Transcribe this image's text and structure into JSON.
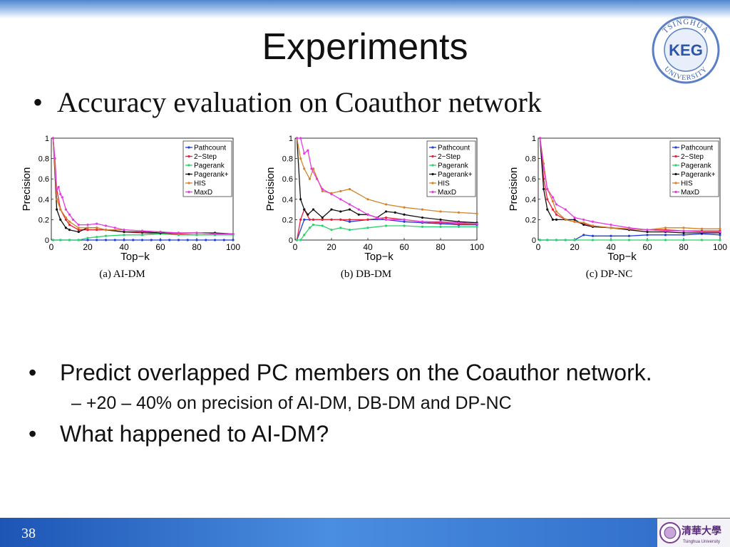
{
  "slide": {
    "title": "Experiments",
    "bullet_top": "Accuracy evaluation on Coauthor network",
    "bullet_predict": "Predict overlapped PC members on the Coauthor network.",
    "sub_bullet": "+20 – 40% on precision of AI-DM, DB-DM and DP-NC",
    "bullet_question": "What happened to AI-DM?",
    "slide_number": "38",
    "bullet_glyph": "•",
    "dash_glyph": "–"
  },
  "logo": {
    "ring_text_top": "TSINGHUA",
    "ring_text_bottom": "UNIVERSITY",
    "center_text": "KEG",
    "footer_chinese": "清華大學",
    "footer_english": "Tsinghua University"
  },
  "colors": {
    "Pathcount": "#1f3fd6",
    "2-Step": "#e8213a",
    "Pagerank": "#27d36b",
    "Pagerank+": "#111111",
    "HIS": "#d4842a",
    "MaxD": "#e43ce0",
    "title_band": "#4f86cf",
    "footer": "#1d55b5"
  },
  "chart_data": [
    {
      "type": "line",
      "caption": "(a) AI-DM",
      "xlabel": "Top−k",
      "ylabel": "Precision",
      "xlim": [
        0,
        100
      ],
      "ylim": [
        0,
        1
      ],
      "xticks": [
        "0",
        "20",
        "40",
        "60",
        "80",
        "100"
      ],
      "yticks": [
        "0",
        "0.2",
        "0.4",
        "0.6",
        "0.8",
        "1"
      ],
      "legend_position": "top-right",
      "series": [
        {
          "name": "Pathcount",
          "x": [
            1,
            5,
            10,
            15,
            20,
            25,
            30,
            35,
            40,
            45,
            50,
            55,
            60,
            65,
            70,
            75,
            80,
            85,
            90,
            95,
            100
          ],
          "y": [
            0,
            0,
            0,
            0,
            0,
            0,
            0,
            0,
            0,
            0,
            0,
            0,
            0,
            0,
            0,
            0,
            0,
            0,
            0,
            0,
            0
          ]
        },
        {
          "name": "2−Step",
          "x": [
            1,
            3,
            5,
            8,
            10,
            15,
            20,
            25,
            30,
            40,
            50,
            60,
            70,
            80,
            90,
            100
          ],
          "y": [
            1.0,
            0.5,
            0.3,
            0.2,
            0.15,
            0.1,
            0.1,
            0.1,
            0.1,
            0.08,
            0.07,
            0.06,
            0.06,
            0.05,
            0.05,
            0.05
          ]
        },
        {
          "name": "Pagerank",
          "x": [
            1,
            5,
            10,
            15,
            20,
            25,
            30,
            40,
            50,
            60,
            70,
            80,
            90,
            100
          ],
          "y": [
            0,
            0,
            0,
            0,
            0.02,
            0.03,
            0.04,
            0.05,
            0.05,
            0.06,
            0.05,
            0.05,
            0.05,
            0.05
          ]
        },
        {
          "name": "Pagerank+",
          "x": [
            1,
            3,
            5,
            8,
            10,
            15,
            20,
            25,
            30,
            40,
            50,
            60,
            70,
            80,
            90,
            100
          ],
          "y": [
            1.0,
            0.3,
            0.2,
            0.12,
            0.1,
            0.08,
            0.12,
            0.12,
            0.1,
            0.08,
            0.08,
            0.07,
            0.07,
            0.07,
            0.07,
            0.06
          ]
        },
        {
          "name": "HIS",
          "x": [
            1,
            3,
            5,
            8,
            10,
            15,
            20,
            25,
            30,
            40,
            50,
            60,
            70,
            80,
            90,
            100
          ],
          "y": [
            1.0,
            0.4,
            0.3,
            0.22,
            0.18,
            0.12,
            0.12,
            0.12,
            0.1,
            0.1,
            0.09,
            0.08,
            0.07,
            0.07,
            0.06,
            0.06
          ]
        },
        {
          "name": "MaxD",
          "x": [
            1,
            2,
            3,
            4,
            5,
            6,
            8,
            10,
            12,
            15,
            20,
            25,
            30,
            35,
            40,
            50,
            60,
            70,
            80,
            90,
            100
          ],
          "y": [
            1.0,
            0.8,
            0.5,
            0.52,
            0.45,
            0.42,
            0.3,
            0.25,
            0.2,
            0.15,
            0.15,
            0.16,
            0.14,
            0.12,
            0.1,
            0.09,
            0.08,
            0.07,
            0.07,
            0.06,
            0.06
          ]
        }
      ]
    },
    {
      "type": "line",
      "caption": "(b) DB-DM",
      "xlabel": "Top−k",
      "ylabel": "Precision",
      "xlim": [
        0,
        100
      ],
      "ylim": [
        0,
        1
      ],
      "xticks": [
        "0",
        "20",
        "40",
        "60",
        "80",
        "100"
      ],
      "yticks": [
        "0",
        "0.2",
        "0.4",
        "0.6",
        "0.8",
        "1"
      ],
      "legend_position": "top-right",
      "series": [
        {
          "name": "Pathcount",
          "x": [
            1,
            5,
            10,
            15,
            20,
            25,
            30,
            40,
            50,
            60,
            70,
            80,
            90,
            100
          ],
          "y": [
            0,
            0.2,
            0.2,
            0.2,
            0.2,
            0.2,
            0.18,
            0.2,
            0.2,
            0.18,
            0.17,
            0.16,
            0.15,
            0.15
          ]
        },
        {
          "name": "2−Step",
          "x": [
            1,
            3,
            5,
            8,
            10,
            15,
            20,
            25,
            30,
            40,
            50,
            60,
            70,
            80,
            90,
            100
          ],
          "y": [
            0,
            0.2,
            0.3,
            0.2,
            0.2,
            0.2,
            0.2,
            0.2,
            0.2,
            0.2,
            0.22,
            0.2,
            0.18,
            0.17,
            0.16,
            0.16
          ]
        },
        {
          "name": "Pagerank",
          "x": [
            1,
            3,
            5,
            8,
            10,
            15,
            20,
            25,
            30,
            40,
            50,
            60,
            70,
            80,
            90,
            100
          ],
          "y": [
            0,
            0,
            0.05,
            0.12,
            0.15,
            0.14,
            0.1,
            0.12,
            0.1,
            0.12,
            0.14,
            0.14,
            0.13,
            0.13,
            0.13,
            0.13
          ]
        },
        {
          "name": "Pagerank+",
          "x": [
            1,
            3,
            5,
            7,
            10,
            15,
            20,
            25,
            30,
            35,
            40,
            45,
            50,
            55,
            60,
            70,
            80,
            90,
            100
          ],
          "y": [
            1.0,
            0.4,
            0.3,
            0.25,
            0.3,
            0.22,
            0.3,
            0.28,
            0.3,
            0.25,
            0.25,
            0.22,
            0.28,
            0.27,
            0.25,
            0.22,
            0.2,
            0.18,
            0.17
          ]
        },
        {
          "name": "HIS",
          "x": [
            1,
            3,
            5,
            8,
            10,
            15,
            20,
            25,
            30,
            40,
            50,
            60,
            70,
            80,
            90,
            100
          ],
          "y": [
            1.0,
            0.8,
            0.7,
            0.6,
            0.7,
            0.48,
            0.46,
            0.48,
            0.5,
            0.4,
            0.35,
            0.32,
            0.3,
            0.28,
            0.27,
            0.26
          ]
        },
        {
          "name": "MaxD",
          "x": [
            1,
            3,
            5,
            7,
            9,
            12,
            15,
            20,
            25,
            30,
            35,
            40,
            45,
            50,
            60,
            70,
            80,
            90,
            100
          ],
          "y": [
            1.0,
            1.0,
            0.85,
            0.88,
            0.7,
            0.6,
            0.5,
            0.45,
            0.4,
            0.35,
            0.3,
            0.25,
            0.22,
            0.2,
            0.2,
            0.18,
            0.18,
            0.17,
            0.16
          ]
        }
      ]
    },
    {
      "type": "line",
      "caption": "(c) DP-NC",
      "xlabel": "Top−k",
      "ylabel": "Precision",
      "xlim": [
        0,
        100
      ],
      "ylim": [
        0,
        1
      ],
      "xticks": [
        "0",
        "20",
        "40",
        "60",
        "80",
        "100"
      ],
      "yticks": [
        "0",
        "0.2",
        "0.4",
        "0.6",
        "0.8",
        "1"
      ],
      "legend_position": "top-right",
      "series": [
        {
          "name": "Pathcount",
          "x": [
            1,
            5,
            10,
            15,
            20,
            25,
            30,
            40,
            50,
            60,
            70,
            80,
            90,
            100
          ],
          "y": [
            0,
            0,
            0,
            0,
            0,
            0.05,
            0.04,
            0.04,
            0.04,
            0.05,
            0.05,
            0.05,
            0.06,
            0.05
          ]
        },
        {
          "name": "2−Step",
          "x": [
            1,
            3,
            5,
            8,
            10,
            15,
            20,
            25,
            30,
            40,
            50,
            60,
            70,
            80,
            90,
            100
          ],
          "y": [
            1.0,
            0.6,
            0.4,
            0.3,
            0.25,
            0.2,
            0.18,
            0.16,
            0.14,
            0.12,
            0.11,
            0.1,
            0.1,
            0.09,
            0.09,
            0.09
          ]
        },
        {
          "name": "Pagerank",
          "x": [
            1,
            5,
            10,
            15,
            20,
            30,
            40,
            50,
            60,
            70,
            80,
            90,
            100
          ],
          "y": [
            0,
            0,
            0,
            0,
            0,
            0,
            0,
            0,
            0,
            0,
            0,
            0,
            0
          ]
        },
        {
          "name": "Pagerank+",
          "x": [
            1,
            3,
            5,
            8,
            10,
            15,
            20,
            25,
            30,
            40,
            50,
            60,
            70,
            80,
            90,
            100
          ],
          "y": [
            1.0,
            0.5,
            0.3,
            0.2,
            0.2,
            0.2,
            0.2,
            0.15,
            0.13,
            0.12,
            0.1,
            0.08,
            0.08,
            0.07,
            0.07,
            0.07
          ]
        },
        {
          "name": "HIS",
          "x": [
            1,
            3,
            5,
            8,
            10,
            15,
            20,
            25,
            30,
            40,
            50,
            60,
            70,
            80,
            90,
            100
          ],
          "y": [
            1.0,
            0.75,
            0.5,
            0.38,
            0.28,
            0.2,
            0.18,
            0.17,
            0.14,
            0.12,
            0.11,
            0.1,
            0.12,
            0.12,
            0.11,
            0.11
          ]
        },
        {
          "name": "MaxD",
          "x": [
            1,
            3,
            5,
            8,
            10,
            15,
            20,
            25,
            30,
            40,
            50,
            60,
            70,
            80,
            90,
            100
          ],
          "y": [
            1.0,
            0.7,
            0.5,
            0.42,
            0.35,
            0.3,
            0.22,
            0.2,
            0.18,
            0.15,
            0.12,
            0.1,
            0.09,
            0.09,
            0.08,
            0.08
          ]
        }
      ]
    }
  ]
}
